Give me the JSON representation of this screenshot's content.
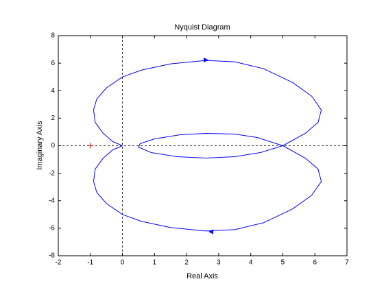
{
  "chart_data": {
    "type": "line",
    "title": "Nyquist Diagram",
    "xlabel": "Real Axis",
    "ylabel": "Imaginary Axis",
    "xlim": [
      -2,
      7
    ],
    "ylim": [
      -8,
      8
    ],
    "xticks": [
      -2,
      -1,
      0,
      1,
      2,
      3,
      4,
      5,
      6,
      7
    ],
    "yticks": [
      -8,
      -6,
      -4,
      -2,
      0,
      2,
      4,
      6,
      8
    ],
    "series": [
      {
        "color": "#0000ff",
        "x": [
          0,
          -0.3,
          -0.6,
          -0.85,
          -0.9,
          -0.8,
          -0.5,
          0,
          0.6,
          1.5,
          2.6,
          3.5,
          4.4,
          5.3,
          5.9,
          6.2,
          6.1,
          5.7,
          5.0,
          4.3,
          3.5,
          2.6,
          1.7,
          0.9,
          0.5,
          0.55,
          1.0,
          1.8,
          2.6,
          3.5,
          4.2,
          5.0,
          5.7,
          6.1,
          6.2,
          5.9,
          5.3,
          4.4,
          3.5,
          2.6,
          1.5,
          0.6,
          0,
          -0.5,
          -0.8,
          -0.9,
          -0.85,
          -0.6,
          -0.3,
          0
        ],
        "values": [
          0,
          0.3,
          0.9,
          1.7,
          2.6,
          3.4,
          4.2,
          5.0,
          5.5,
          5.95,
          6.2,
          6.1,
          5.6,
          4.6,
          3.6,
          2.6,
          1.7,
          0.9,
          0,
          -0.5,
          -0.8,
          -0.9,
          -0.8,
          -0.5,
          -0.1,
          0.15,
          0.5,
          0.8,
          0.9,
          0.85,
          0.6,
          0,
          -0.9,
          -1.7,
          -2.6,
          -3.6,
          -4.6,
          -5.6,
          -6.1,
          -6.2,
          -5.95,
          -5.5,
          -5.0,
          -4.2,
          -3.4,
          -2.6,
          -1.7,
          -0.9,
          -0.3,
          0
        ]
      },
      {
        "color": "#ff0000",
        "marker": "+",
        "x": [
          -1
        ],
        "values": [
          0
        ]
      }
    ]
  }
}
